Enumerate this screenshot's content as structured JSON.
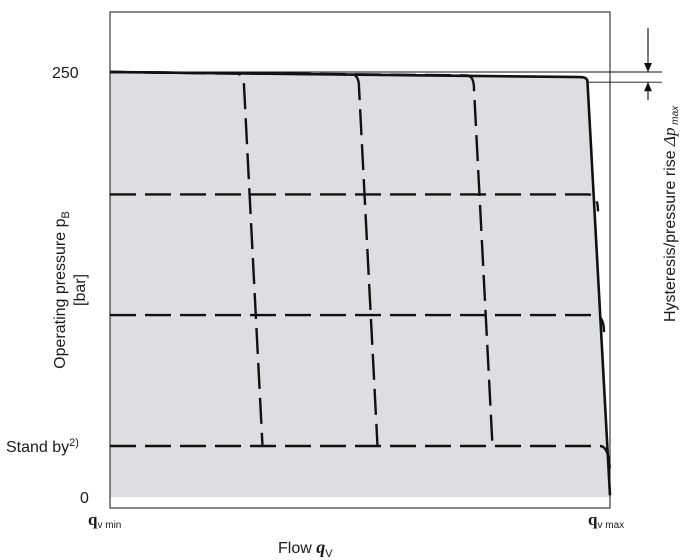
{
  "chart_data": {
    "type": "line",
    "xlabel": "Flow",
    "xlabel_symbol": "q",
    "xlabel_sub": "V",
    "ylabel_line1": "Operating pressure p",
    "ylabel_sub": "B",
    "ylabel_line2": "[bar]",
    "right_label": "Hysteresis/pressure rise ",
    "right_label_symbol": "Δp",
    "right_label_sub": "max",
    "x_tick_labels": [
      {
        "main": "q",
        "sub": "v min",
        "x": 0
      },
      {
        "main": "q",
        "sub": "v max",
        "x": 100
      }
    ],
    "y_tick_labels": [
      {
        "label": "250",
        "y": 250
      },
      {
        "label": "Stand by",
        "sup": "2)",
        "y": 30
      },
      {
        "label": "0",
        "y": 0
      }
    ],
    "xlim": [
      0,
      100
    ],
    "ylim": [
      0,
      300
    ],
    "fill_color": "#dddee1",
    "line_color": "#111111",
    "envelope": {
      "style": "solid",
      "points": [
        [
          0,
          250
        ],
        [
          94,
          247
        ],
        [
          95.5,
          244
        ],
        [
          100,
          1
        ]
      ]
    },
    "pressure_levels": {
      "style": "dashed",
      "series": [
        {
          "y_start": 178,
          "points": [
            [
              0,
              178
            ],
            [
              95.6,
              178
            ],
            [
              97.6,
              168
            ]
          ]
        },
        {
          "y_start": 107,
          "points": [
            [
              0,
              107
            ],
            [
              96.8,
              107
            ],
            [
              98.8,
              97
            ]
          ]
        },
        {
          "y_start": 30,
          "points": [
            [
              0,
              30
            ],
            [
              98,
              30
            ],
            [
              100,
              12
            ]
          ]
        }
      ]
    },
    "flow_settings": {
      "style": "dashed",
      "series": [
        {
          "x_end": 30.5,
          "points": [
            [
              0,
              250
            ],
            [
              25.5,
              249
            ],
            [
              26.8,
              242
            ],
            [
              30.5,
              30
            ]
          ]
        },
        {
          "x_end": 53.5,
          "points": [
            [
              0,
              250
            ],
            [
              48.5,
              248.5
            ],
            [
              49.8,
              241
            ],
            [
              53.5,
              30
            ]
          ]
        },
        {
          "x_end": 76.5,
          "points": [
            [
              0,
              250
            ],
            [
              71.5,
              248
            ],
            [
              72.8,
              240
            ],
            [
              76.5,
              30
            ]
          ]
        }
      ]
    },
    "hysteresis_band": {
      "y_low": 244,
      "y_high": 250
    }
  }
}
